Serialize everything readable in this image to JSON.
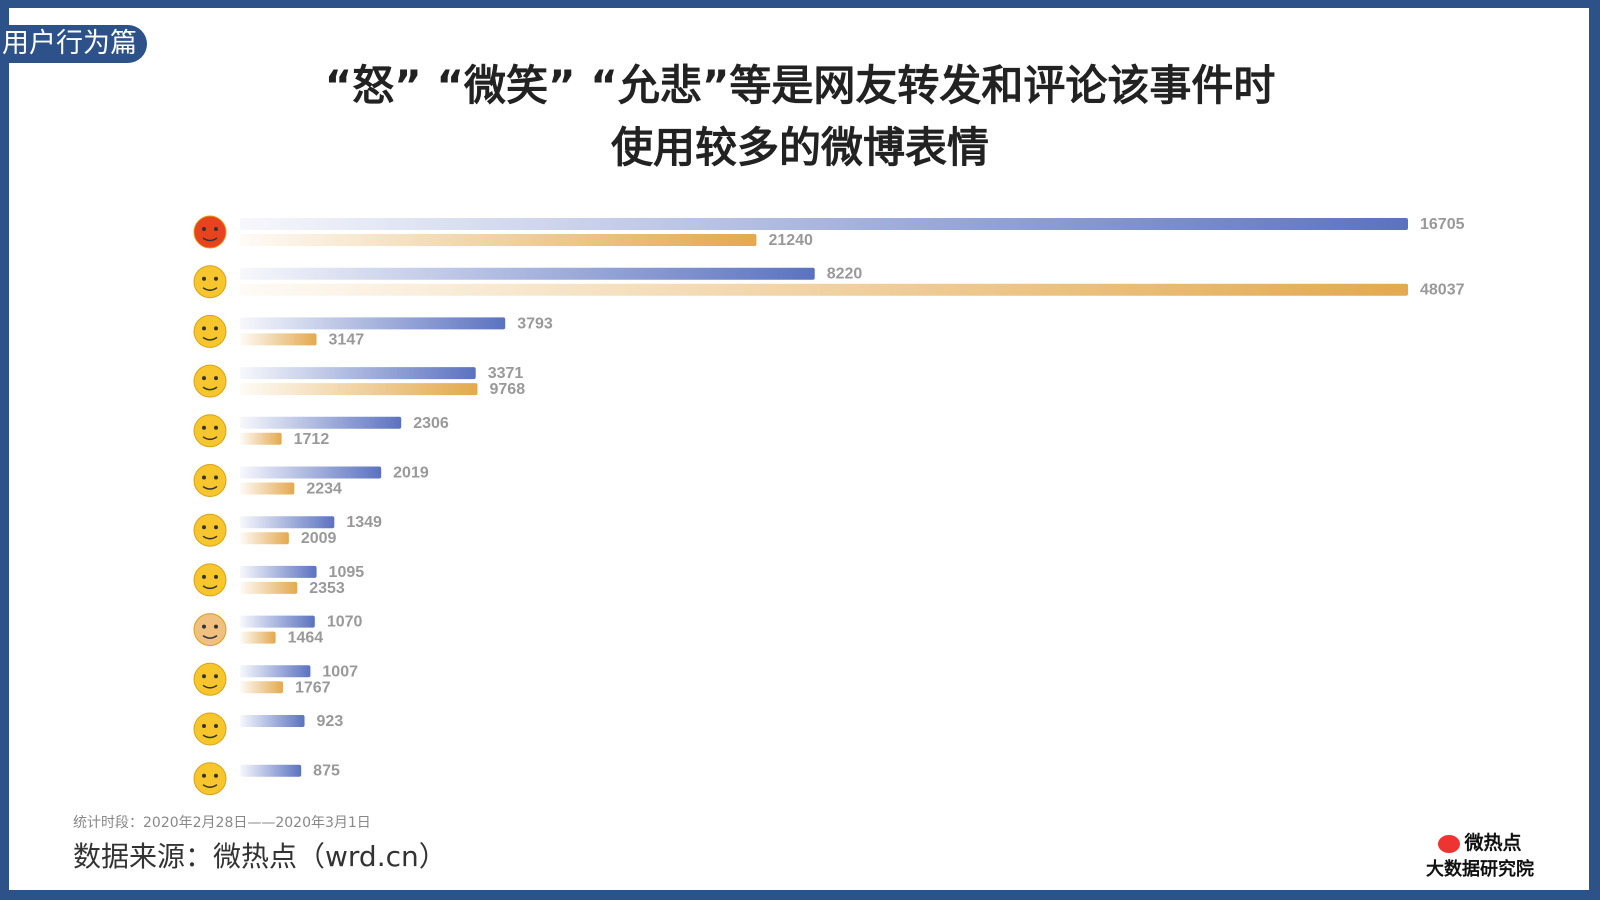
{
  "tag": "用户行为篇",
  "title_line1": "“怒” “微笑” “允悲”等是网友转发和评论该事件时",
  "title_line2": "使用较多的微博表情",
  "note": "统计时段：2020年2月28日——2020年3月1日",
  "source": "数据来源：微热点（wrd.cn）",
  "logo": {
    "line1": "微热点",
    "line2": "大数据研究院"
  },
  "colors": {
    "blue": "#5b72c0",
    "orange": "#e3a94e",
    "frame": "#2d5289"
  },
  "chart_data": {
    "type": "bar",
    "orientation": "horizontal",
    "categories": [
      "angry-emoji",
      "smile-emoji",
      "laugh-cry-emoji",
      "crying-emoji",
      "confused-emoji",
      "dizzy-emoji",
      "grin-emoji",
      "shrug-emoji",
      "thumbs-up-emoji",
      "shy-emoji",
      "drool-emoji",
      "think-emoji"
    ],
    "series": [
      {
        "values": [
          16705,
          8220,
          3793,
          3371,
          2306,
          2019,
          1349,
          1095,
          1070,
          1007,
          923,
          875
        ],
        "color": "#5b72c0"
      },
      {
        "values": [
          21240,
          48037,
          3147,
          9768,
          1712,
          2234,
          2009,
          2353,
          1464,
          1767,
          null,
          null
        ],
        "color": "#e3a94e"
      }
    ],
    "emoji_colors": [
      "#e8421e",
      "#f6c62c",
      "#f6c62c",
      "#f6c62c",
      "#f6c62c",
      "#f6c62c",
      "#f6c62c",
      "#f6c62c",
      "#f0c080",
      "#f6c62c",
      "#f6c62c",
      "#f6c62c"
    ],
    "grid": false,
    "legend": "none"
  }
}
